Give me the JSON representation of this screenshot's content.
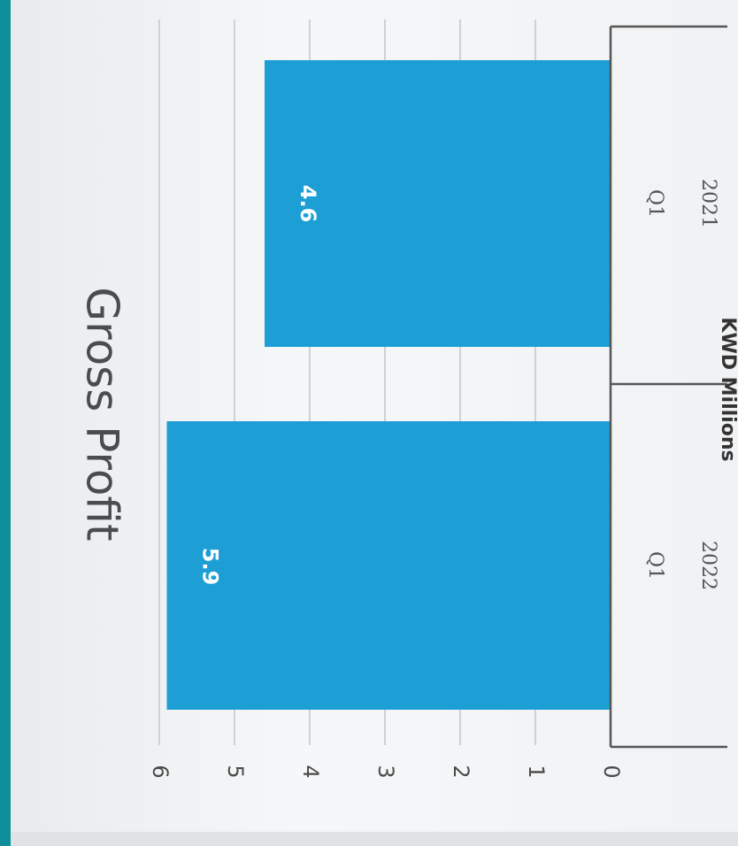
{
  "chart_data": {
    "type": "bar",
    "title": "Gross Profit",
    "ylabel": "KWD Millions",
    "xlabel": "",
    "ylim": [
      0,
      6
    ],
    "yticks": [
      "0",
      "1",
      "2",
      "3",
      "4",
      "5",
      "6"
    ],
    "categories": [
      {
        "quarter": "Q1",
        "year": "2022"
      },
      {
        "quarter": "Q1",
        "year": "2021"
      }
    ],
    "values": [
      5.9,
      4.6
    ],
    "data_labels": [
      "5.9",
      "4.6"
    ],
    "grid": true,
    "orientation": "rotated 90° clockwise in the scan",
    "colors": {
      "bar": "#1d9fd6",
      "grid": "#cfd2d5",
      "axis": "#555555"
    }
  }
}
